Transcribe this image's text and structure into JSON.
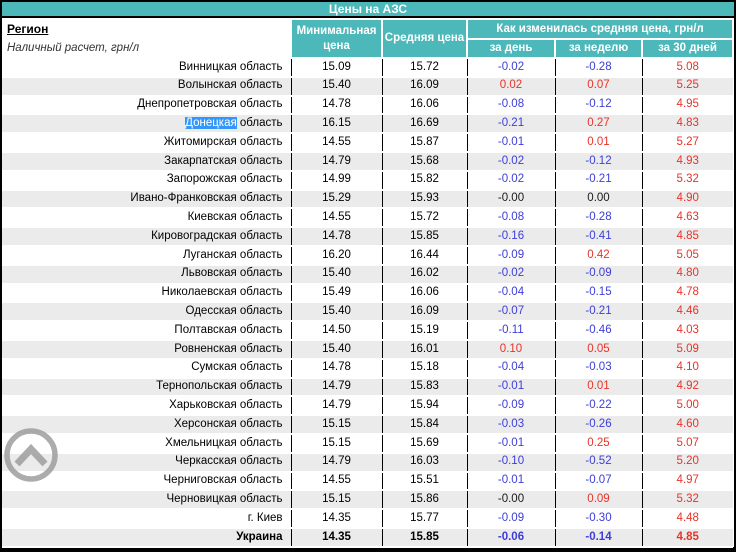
{
  "title": "Цены на АЗС",
  "header": {
    "region_label": "Регион",
    "region_sublabel": "Наличный расчет, грн/л",
    "col_min": "Минимальная цена",
    "col_avg": "Средняя цена",
    "col_change_group": "Как изменилась средняя цена, грн/л",
    "col_day": "за день",
    "col_week": "за неделю",
    "col_month": "за 30 дней"
  },
  "colors": {
    "header_teal": "#4db8ba",
    "negative_blue": "#3d3dd8",
    "positive_red": "#e8332a",
    "zero_black": "#1a1a1a",
    "selection_blue": "#3297fd",
    "zebra_gray": "#ebebeb"
  },
  "icons": {
    "scroll_top": "chevron-up-circle-icon"
  },
  "rows": [
    {
      "region": "Винницкая область",
      "min": "15.09",
      "avg": "15.72",
      "day": "-0.02",
      "week": "-0.28",
      "month": "5.08"
    },
    {
      "region": "Волынская область",
      "min": "15.40",
      "avg": "16.09",
      "day": "0.02",
      "week": "0.07",
      "month": "5.25"
    },
    {
      "region": "Днепропетровская область",
      "min": "14.78",
      "avg": "16.06",
      "day": "-0.08",
      "week": "-0.12",
      "month": "4.95"
    },
    {
      "region": "Донецкая область",
      "highlight": "Донецкая",
      "min": "16.15",
      "avg": "16.69",
      "day": "-0.21",
      "week": "0.27",
      "month": "4.83"
    },
    {
      "region": "Житомирская область",
      "min": "14.55",
      "avg": "15.87",
      "day": "-0.01",
      "week": "0.01",
      "month": "5.27"
    },
    {
      "region": "Закарпатская область",
      "min": "14.79",
      "avg": "15.68",
      "day": "-0.02",
      "week": "-0.12",
      "month": "4.93"
    },
    {
      "region": "Запорожская область",
      "min": "14.99",
      "avg": "15.82",
      "day": "-0.02",
      "week": "-0.21",
      "month": "5.32"
    },
    {
      "region": "Ивано-Франковская область",
      "min": "15.29",
      "avg": "15.93",
      "day": "-0.00",
      "week": "0.00",
      "month": "4.90"
    },
    {
      "region": "Киевская область",
      "min": "14.55",
      "avg": "15.72",
      "day": "-0.08",
      "week": "-0.28",
      "month": "4.63"
    },
    {
      "region": "Кировоградская область",
      "min": "14.78",
      "avg": "15.85",
      "day": "-0.16",
      "week": "-0.41",
      "month": "4.85"
    },
    {
      "region": "Луганская область",
      "min": "16.20",
      "avg": "16.44",
      "day": "-0.09",
      "week": "0.42",
      "month": "5.05"
    },
    {
      "region": "Львовская область",
      "min": "15.40",
      "avg": "16.02",
      "day": "-0.02",
      "week": "-0.09",
      "month": "4.80"
    },
    {
      "region": "Николаевская область",
      "min": "15.49",
      "avg": "16.06",
      "day": "-0.04",
      "week": "-0.15",
      "month": "4.78"
    },
    {
      "region": "Одесская область",
      "min": "15.40",
      "avg": "16.09",
      "day": "-0.07",
      "week": "-0.21",
      "month": "4.46"
    },
    {
      "region": "Полтавская область",
      "min": "14.50",
      "avg": "15.19",
      "day": "-0.11",
      "week": "-0.46",
      "month": "4.03"
    },
    {
      "region": "Ровненская область",
      "min": "15.40",
      "avg": "16.01",
      "day": "0.10",
      "week": "0.05",
      "month": "5.09"
    },
    {
      "region": "Сумская область",
      "min": "14.78",
      "avg": "15.18",
      "day": "-0.04",
      "week": "-0.03",
      "month": "4.10"
    },
    {
      "region": "Тернопольская область",
      "min": "14.79",
      "avg": "15.83",
      "day": "-0.01",
      "week": "0.01",
      "month": "4.92"
    },
    {
      "region": "Харьковская область",
      "min": "14.79",
      "avg": "15.94",
      "day": "-0.09",
      "week": "-0.22",
      "month": "5.00"
    },
    {
      "region": "Херсонская область",
      "min": "15.15",
      "avg": "15.84",
      "day": "-0.03",
      "week": "-0.26",
      "month": "4.60"
    },
    {
      "region": "Хмельницкая область",
      "min": "15.15",
      "avg": "15.69",
      "day": "-0.01",
      "week": "0.25",
      "month": "5.07"
    },
    {
      "region": "Черкасская область",
      "min": "14.79",
      "avg": "16.03",
      "day": "-0.10",
      "week": "-0.52",
      "month": "5.20"
    },
    {
      "region": "Черниговская область",
      "min": "14.55",
      "avg": "15.51",
      "day": "-0.01",
      "week": "-0.07",
      "month": "4.97"
    },
    {
      "region": "Черновицкая область",
      "min": "15.15",
      "avg": "15.86",
      "day": "-0.00",
      "week": "0.09",
      "month": "5.32"
    },
    {
      "region": "г. Киев",
      "min": "14.35",
      "avg": "15.77",
      "day": "-0.09",
      "week": "-0.30",
      "month": "4.48"
    },
    {
      "region": "Украина",
      "bold": true,
      "min": "14.35",
      "avg": "15.85",
      "day": "-0.06",
      "week": "-0.14",
      "month": "4.85"
    }
  ]
}
